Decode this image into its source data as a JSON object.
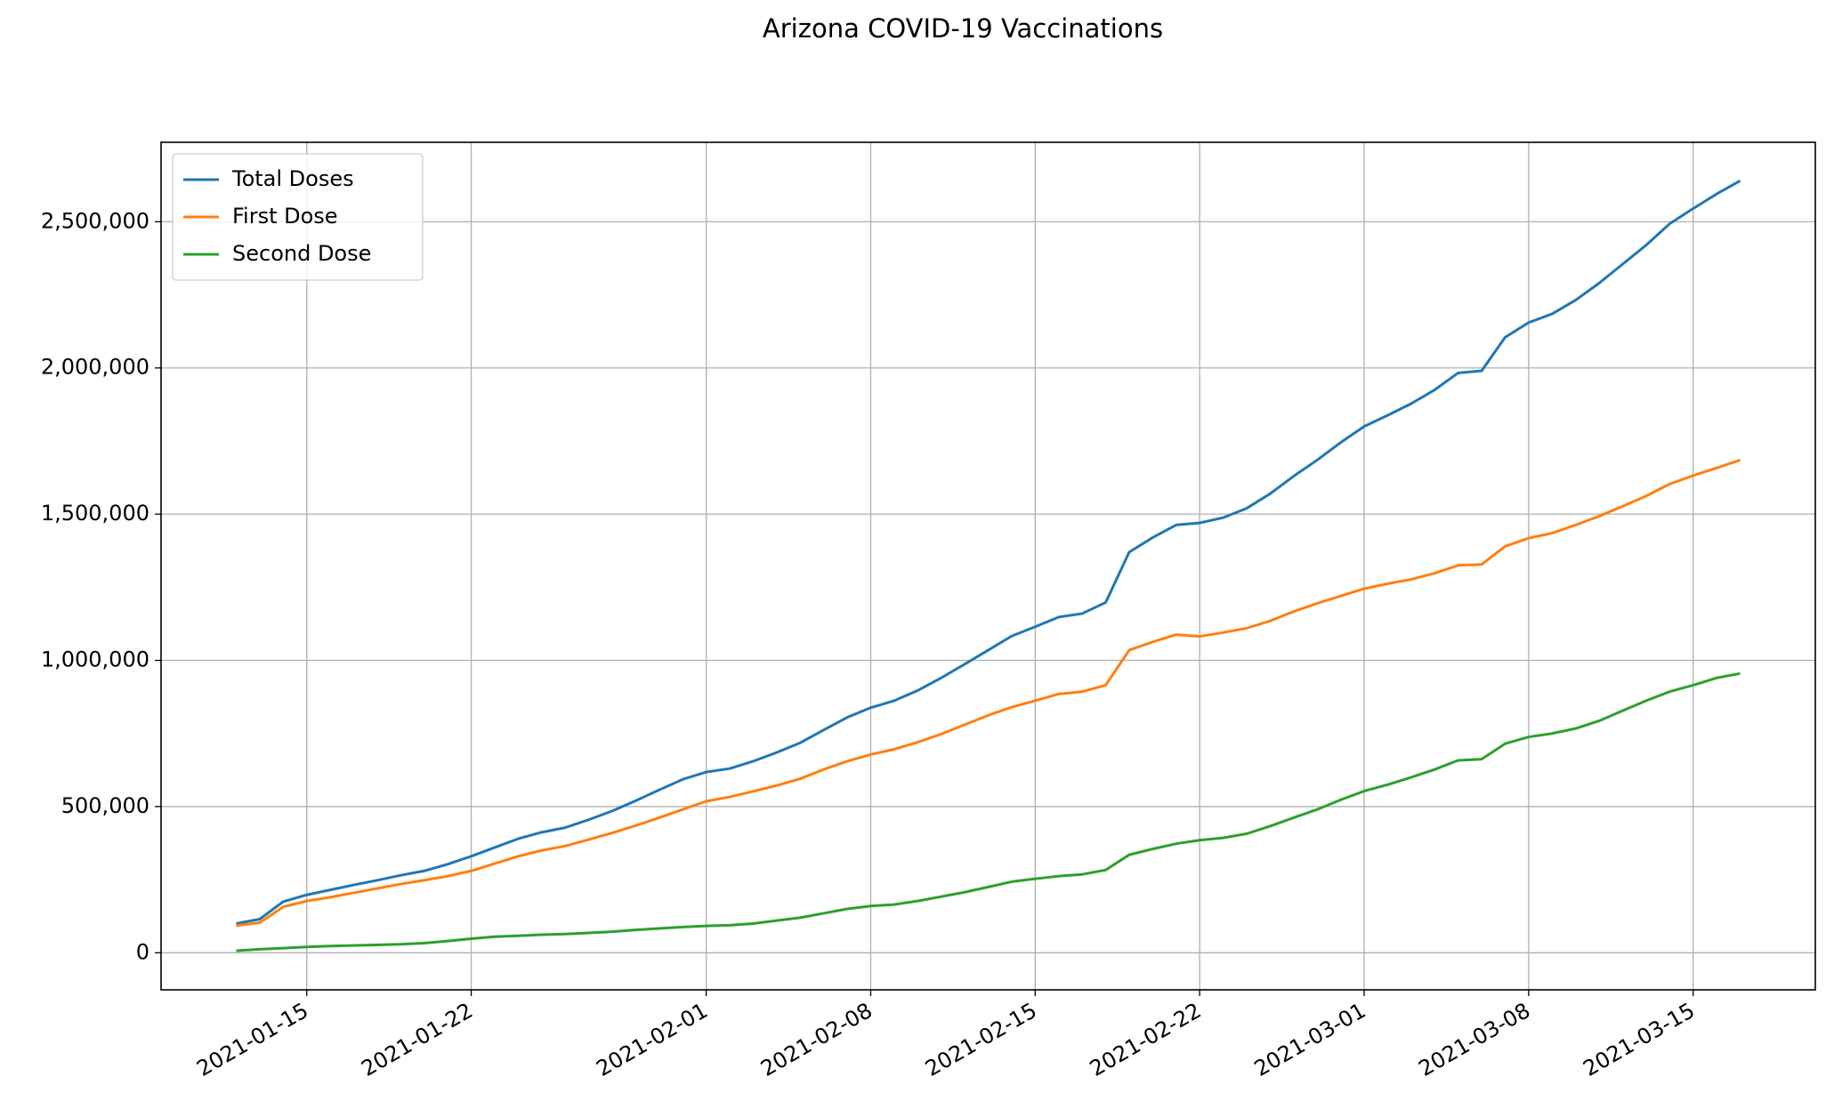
{
  "chart_data": {
    "type": "line",
    "title": "Arizona COVID-19 Vaccinations",
    "x": [
      "2021-01-12",
      "2021-01-13",
      "2021-01-14",
      "2021-01-15",
      "2021-01-16",
      "2021-01-17",
      "2021-01-18",
      "2021-01-19",
      "2021-01-20",
      "2021-01-21",
      "2021-01-22",
      "2021-01-23",
      "2021-01-24",
      "2021-01-25",
      "2021-01-26",
      "2021-01-27",
      "2021-01-28",
      "2021-01-29",
      "2021-01-30",
      "2021-01-31",
      "2021-02-01",
      "2021-02-02",
      "2021-02-03",
      "2021-02-04",
      "2021-02-05",
      "2021-02-06",
      "2021-02-07",
      "2021-02-08",
      "2021-02-09",
      "2021-02-10",
      "2021-02-11",
      "2021-02-12",
      "2021-02-13",
      "2021-02-14",
      "2021-02-15",
      "2021-02-16",
      "2021-02-17",
      "2021-02-18",
      "2021-02-19",
      "2021-02-20",
      "2021-02-21",
      "2021-02-22",
      "2021-02-23",
      "2021-02-24",
      "2021-02-25",
      "2021-02-26",
      "2021-02-27",
      "2021-02-28",
      "2021-03-01",
      "2021-03-02",
      "2021-03-03",
      "2021-03-04",
      "2021-03-05",
      "2021-03-06",
      "2021-03-07",
      "2021-03-08",
      "2021-03-09",
      "2021-03-10",
      "2021-03-11",
      "2021-03-12",
      "2021-03-13",
      "2021-03-14",
      "2021-03-15",
      "2021-03-16",
      "2021-03-17"
    ],
    "series": [
      {
        "name": "Total Doses",
        "color": "#1f77b4",
        "values": [
          100000,
          115000,
          175000,
          198000,
          215000,
          232000,
          248000,
          265000,
          280000,
          303000,
          330000,
          360000,
          390000,
          412000,
          428000,
          455000,
          485000,
          520000,
          557000,
          593000,
          618000,
          630000,
          655000,
          685000,
          718000,
          762000,
          805000,
          838000,
          862000,
          897000,
          940000,
          987000,
          1035000,
          1083000,
          1115000,
          1148000,
          1160000,
          1198000,
          1370000,
          1420000,
          1463000,
          1470000,
          1488000,
          1520000,
          1570000,
          1630000,
          1685000,
          1745000,
          1800000,
          1838000,
          1878000,
          1925000,
          1983000,
          1990000,
          2105000,
          2155000,
          2185000,
          2232000,
          2290000,
          2355000,
          2420000,
          2493000,
          2545000,
          2595000,
          2640000
        ]
      },
      {
        "name": "First Dose",
        "color": "#ff7f0e",
        "values": [
          93000,
          103000,
          157000,
          177000,
          190000,
          205000,
          220000,
          235000,
          248000,
          262000,
          280000,
          305000,
          330000,
          350000,
          365000,
          387000,
          410000,
          435000,
          462000,
          490000,
          518000,
          533000,
          552000,
          572000,
          595000,
          627000,
          655000,
          678000,
          696000,
          720000,
          748000,
          780000,
          812000,
          840000,
          862000,
          885000,
          893000,
          915000,
          1035000,
          1063000,
          1088000,
          1082000,
          1095000,
          1110000,
          1135000,
          1167000,
          1195000,
          1220000,
          1245000,
          1262000,
          1277000,
          1298000,
          1325000,
          1328000,
          1390000,
          1418000,
          1435000,
          1463000,
          1493000,
          1527000,
          1562000,
          1603000,
          1632000,
          1658000,
          1685000
        ]
      },
      {
        "name": "Second Dose",
        "color": "#2ca02c",
        "values": [
          7000,
          12000,
          16000,
          20000,
          23000,
          25000,
          27000,
          29000,
          33000,
          40000,
          48000,
          55000,
          58000,
          62000,
          64000,
          68000,
          72000,
          78000,
          83000,
          88000,
          92000,
          94000,
          100000,
          110000,
          120000,
          135000,
          150000,
          160000,
          165000,
          177000,
          192000,
          207000,
          225000,
          243000,
          253000,
          262000,
          268000,
          283000,
          335000,
          355000,
          373000,
          385000,
          393000,
          407000,
          433000,
          462000,
          490000,
          523000,
          553000,
          575000,
          600000,
          627000,
          658000,
          662000,
          715000,
          738000,
          750000,
          767000,
          793000,
          828000,
          862000,
          893000,
          915000,
          940000,
          955000
        ]
      }
    ],
    "xlim": [
      "2021-01-08T19:12:00",
      "2021-03-20T04:48:00"
    ],
    "xticks": [
      "2021-01-15",
      "2021-01-22",
      "2021-02-01",
      "2021-02-08",
      "2021-02-15",
      "2021-02-22",
      "2021-03-01",
      "2021-03-08",
      "2021-03-15"
    ],
    "ylim": [
      -126750,
      2771750
    ],
    "yticks": [
      0,
      {
        "value": 500000,
        "label": "500,000"
      },
      {
        "value": 1000000,
        "label": "1,000,000"
      },
      {
        "value": 1500000,
        "label": "1,500,000"
      },
      {
        "value": 2000000,
        "label": "2,000,000"
      },
      {
        "value": 2500000,
        "label": "2,500,000"
      }
    ],
    "grid": true,
    "legend": "upper left"
  }
}
